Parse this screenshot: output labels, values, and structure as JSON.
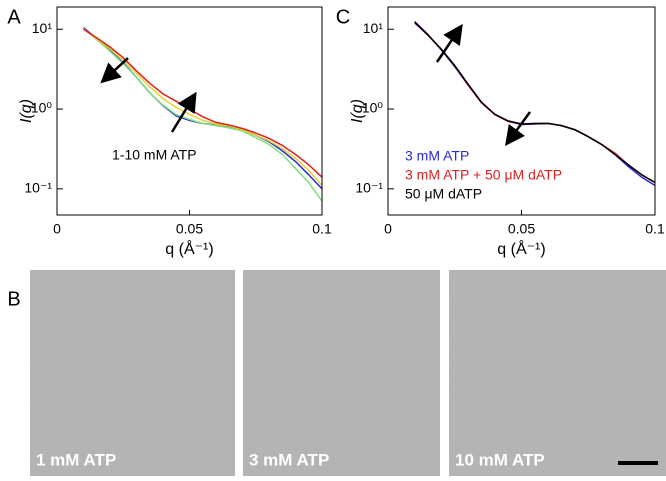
{
  "chart_data": [
    {
      "type": "line",
      "panel_label": "A",
      "xlabel": "q (Å⁻¹)",
      "ylabel": "I(q)",
      "log_y": true,
      "xlim": [
        0,
        0.1
      ],
      "xticks": [
        0,
        0.05,
        0.1
      ],
      "ylim": [
        0.047,
        19
      ],
      "yticks": [
        {
          "value": 0.1,
          "label": "10⁻¹"
        },
        {
          "value": 1,
          "label": "10⁰"
        },
        {
          "value": 10,
          "label": "10¹"
        }
      ],
      "annotation": "1-10 mM ATP",
      "x": [
        0.01,
        0.015,
        0.02,
        0.025,
        0.03,
        0.035,
        0.04,
        0.045,
        0.05,
        0.055,
        0.06,
        0.065,
        0.07,
        0.075,
        0.08,
        0.085,
        0.09,
        0.095,
        0.1
      ],
      "series": [
        {
          "color": "#2a2ad0",
          "values": [
            10.5,
            7.6,
            5.4,
            3.8,
            2.5,
            1.6,
            1.1,
            0.82,
            0.72,
            0.66,
            0.63,
            0.6,
            0.55,
            0.47,
            0.39,
            0.3,
            0.22,
            0.15,
            0.1
          ]
        },
        {
          "color": "#7fe07f",
          "values": [
            10.2,
            7.4,
            5.3,
            3.7,
            2.5,
            1.6,
            1.12,
            0.85,
            0.74,
            0.66,
            0.62,
            0.58,
            0.53,
            0.44,
            0.36,
            0.27,
            0.18,
            0.12,
            0.07
          ]
        },
        {
          "color": "#e8d030",
          "values": [
            10.1,
            7.6,
            5.7,
            4.1,
            2.8,
            1.9,
            1.35,
            1.05,
            0.86,
            0.72,
            0.65,
            0.61,
            0.55,
            0.47,
            0.4,
            0.32,
            0.24,
            0.17,
            0.11
          ]
        },
        {
          "color": "#e02020",
          "values": [
            10,
            7.8,
            6.0,
            4.4,
            3.0,
            2.1,
            1.55,
            1.25,
            1.0,
            0.8,
            0.68,
            0.63,
            0.57,
            0.5,
            0.43,
            0.35,
            0.27,
            0.2,
            0.14
          ]
        }
      ]
    },
    {
      "type": "line",
      "panel_label": "C",
      "xlabel": "q (Å⁻¹)",
      "ylabel": "I(q)",
      "log_y": true,
      "xlim": [
        0,
        0.1
      ],
      "xticks": [
        0,
        0.05,
        0.1
      ],
      "ylim": [
        0.047,
        19
      ],
      "yticks": [
        {
          "value": 0.1,
          "label": "10⁻¹"
        },
        {
          "value": 1,
          "label": "10⁰"
        },
        {
          "value": 10,
          "label": "10¹"
        }
      ],
      "x": [
        0.01,
        0.015,
        0.02,
        0.025,
        0.03,
        0.035,
        0.04,
        0.045,
        0.05,
        0.055,
        0.06,
        0.065,
        0.07,
        0.075,
        0.08,
        0.085,
        0.09,
        0.095,
        0.1
      ],
      "series": [
        {
          "name": "3 mM ATP",
          "color": "#2a2ad0",
          "values": [
            12.5,
            8.6,
            5.5,
            3.4,
            2.0,
            1.2,
            0.86,
            0.7,
            0.64,
            0.65,
            0.66,
            0.62,
            0.55,
            0.45,
            0.36,
            0.27,
            0.19,
            0.14,
            0.11
          ]
        },
        {
          "name": "3 mM ATP + 50 μM dATP",
          "color": "#e02020",
          "values": [
            12,
            8.5,
            5.6,
            3.5,
            2.0,
            1.2,
            0.85,
            0.7,
            0.65,
            0.66,
            0.66,
            0.62,
            0.55,
            0.45,
            0.36,
            0.28,
            0.2,
            0.15,
            0.12
          ]
        },
        {
          "name": "50 μM dATP",
          "color": "#000000",
          "values": [
            12.2,
            8.4,
            5.6,
            3.5,
            2.05,
            1.22,
            0.86,
            0.71,
            0.65,
            0.66,
            0.66,
            0.62,
            0.55,
            0.45,
            0.36,
            0.27,
            0.2,
            0.15,
            0.12
          ]
        }
      ]
    }
  ],
  "micrographs": {
    "panel_label": "B",
    "images": [
      {
        "label": "1 mM ATP"
      },
      {
        "label": "3 mM ATP"
      },
      {
        "label": "10 mM ATP"
      }
    ]
  }
}
